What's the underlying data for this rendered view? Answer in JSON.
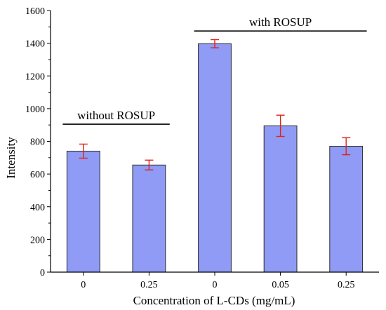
{
  "chart_data": {
    "type": "bar",
    "categories": [
      "0",
      "0.25",
      "0",
      "0.05",
      "0.25"
    ],
    "values": [
      740,
      655,
      1397,
      895,
      770
    ],
    "errors": [
      43,
      30,
      25,
      65,
      52
    ],
    "xlabel": "Concentration of L-CDs (mg/mL)",
    "ylabel": "Intensity",
    "ylim": [
      0,
      1600
    ],
    "yticks": [
      0,
      200,
      400,
      600,
      800,
      1000,
      1200,
      1400,
      1600
    ],
    "grid": false,
    "legend": "none",
    "groups": [
      {
        "label": "without ROSUP",
        "from_index": 0,
        "to_index": 1,
        "level": 905
      },
      {
        "label": "with ROSUP",
        "from_index": 2,
        "to_index": 4,
        "level": 1475
      }
    ],
    "colors": {
      "bar_fill": "#8f9bf5",
      "bar_stroke": "#2b2b2b",
      "error_bar": "#e0201a",
      "axis": "#000000"
    }
  }
}
